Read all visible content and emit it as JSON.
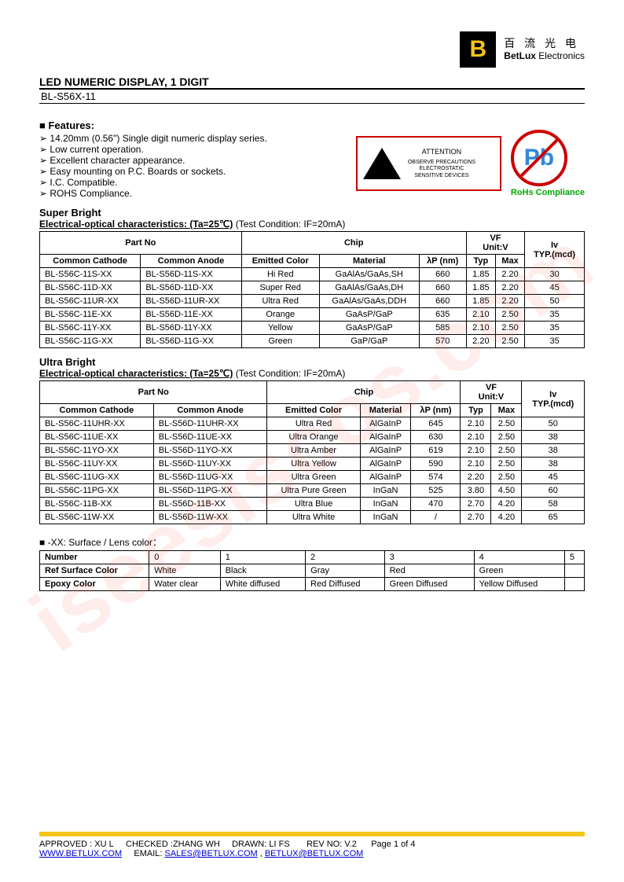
{
  "company": {
    "logo_letter": "B",
    "name_cn": "百 流 光 电",
    "name_en_bold": "BetLux",
    "name_en_rest": " Electronics"
  },
  "title": "LED NUMERIC DISPLAY, 1 DIGIT",
  "part_no": "BL-S56X-11",
  "features_heading": "Features:",
  "features": [
    "14.20mm (0.56\") Single digit numeric display series.",
    "Low current operation.",
    "Excellent character appearance.",
    "Easy mounting on P.C. Boards or sockets.",
    "I.C. Compatible.",
    "ROHS Compliance."
  ],
  "esd": {
    "attention": "ATTENTION",
    "line1": "OBSERVE PRECAUTIONS",
    "line2": "ELECTROSTATIC",
    "line3": "SENSITIVE DEVICES"
  },
  "rohs": {
    "pb": "Pb",
    "label": "RoHs Compliance"
  },
  "super": {
    "title": "Super Bright",
    "sub_u": "Electrical-optical characteristics: (Ta=25℃)",
    "sub_rest": "   (Test Condition: IF=20mA)",
    "headers": {
      "partno": "Part No",
      "chip": "Chip",
      "vf": "VF",
      "vf_unit": "Unit:V",
      "iv": "Iv",
      "iv_unit": "TYP.(mcd)",
      "cc": "Common Cathode",
      "ca": "Common Anode",
      "ec": "Emitted Color",
      "mat": "Material",
      "lp": "λP (nm)",
      "typ": "Typ",
      "max": "Max"
    },
    "rows": [
      {
        "cc": "BL-S56C-11S-XX",
        "ca": "BL-S56D-11S-XX",
        "ec": "Hi Red",
        "mat": "GaAlAs/GaAs,SH",
        "lp": "660",
        "typ": "1.85",
        "max": "2.20",
        "iv": "30"
      },
      {
        "cc": "BL-S56C-11D-XX",
        "ca": "BL-S56D-11D-XX",
        "ec": "Super Red",
        "mat": "GaAlAs/GaAs,DH",
        "lp": "660",
        "typ": "1.85",
        "max": "2.20",
        "iv": "45"
      },
      {
        "cc": "BL-S56C-11UR-XX",
        "ca": "BL-S56D-11UR-XX",
        "ec": "Ultra Red",
        "mat": "GaAlAs/GaAs,DDH",
        "lp": "660",
        "typ": "1.85",
        "max": "2.20",
        "iv": "50"
      },
      {
        "cc": "BL-S56C-11E-XX",
        "ca": "BL-S56D-11E-XX",
        "ec": "Orange",
        "mat": "GaAsP/GaP",
        "lp": "635",
        "typ": "2.10",
        "max": "2.50",
        "iv": "35"
      },
      {
        "cc": "BL-S56C-11Y-XX",
        "ca": "BL-S56D-11Y-XX",
        "ec": "Yellow",
        "mat": "GaAsP/GaP",
        "lp": "585",
        "typ": "2.10",
        "max": "2.50",
        "iv": "35"
      },
      {
        "cc": "BL-S56C-11G-XX",
        "ca": "BL-S56D-11G-XX",
        "ec": "Green",
        "mat": "GaP/GaP",
        "lp": "570",
        "typ": "2.20",
        "max": "2.50",
        "iv": "35"
      }
    ]
  },
  "ultra": {
    "title": "Ultra Bright",
    "sub_u": "Electrical-optical characteristics: (Ta=25℃)",
    "sub_rest": "   (Test Condition: IF=20mA)",
    "headers": {
      "partno": "Part No",
      "chip": "Chip",
      "vf": "VF",
      "vf_unit": "Unit:V",
      "iv": "Iv",
      "iv_unit": "TYP.(mcd)",
      "cc": "Common Cathode",
      "ca": "Common Anode",
      "ec": "Emitted Color",
      "mat": "Material",
      "lp": "λP (nm)",
      "typ": "Typ",
      "max": "Max"
    },
    "rows": [
      {
        "cc": "BL-S56C-11UHR-XX",
        "ca": "BL-S56D-11UHR-XX",
        "ec": "Ultra Red",
        "mat": "AlGaInP",
        "lp": "645",
        "typ": "2.10",
        "max": "2.50",
        "iv": "50"
      },
      {
        "cc": "BL-S56C-11UE-XX",
        "ca": "BL-S56D-11UE-XX",
        "ec": "Ultra Orange",
        "mat": "AlGaInP",
        "lp": "630",
        "typ": "2.10",
        "max": "2.50",
        "iv": "38"
      },
      {
        "cc": "BL-S56C-11YO-XX",
        "ca": "BL-S56D-11YO-XX",
        "ec": "Ultra Amber",
        "mat": "AlGaInP",
        "lp": "619",
        "typ": "2.10",
        "max": "2.50",
        "iv": "38"
      },
      {
        "cc": "BL-S56C-11UY-XX",
        "ca": "BL-S56D-11UY-XX",
        "ec": "Ultra Yellow",
        "mat": "AlGaInP",
        "lp": "590",
        "typ": "2.10",
        "max": "2.50",
        "iv": "38"
      },
      {
        "cc": "BL-S56C-11UG-XX",
        "ca": "BL-S56D-11UG-XX",
        "ec": "Ultra Green",
        "mat": "AlGaInP",
        "lp": "574",
        "typ": "2.20",
        "max": "2.50",
        "iv": "45"
      },
      {
        "cc": "BL-S56C-11PG-XX",
        "ca": "BL-S56D-11PG-XX",
        "ec": "Ultra Pure Green",
        "mat": "InGaN",
        "lp": "525",
        "typ": "3.80",
        "max": "4.50",
        "iv": "60"
      },
      {
        "cc": "BL-S56C-11B-XX",
        "ca": "BL-S56D-11B-XX",
        "ec": "Ultra Blue",
        "mat": "InGaN",
        "lp": "470",
        "typ": "2.70",
        "max": "4.20",
        "iv": "58"
      },
      {
        "cc": "BL-S56C-11W-XX",
        "ca": "BL-S56D-11W-XX",
        "ec": "Ultra White",
        "mat": "InGaN",
        "lp": "/",
        "typ": "2.70",
        "max": "4.20",
        "iv": "65"
      }
    ]
  },
  "lens": {
    "title": "-XX: Surface / Lens color：",
    "headers": {
      "num": "Number",
      "rsc": "Ref Surface Color",
      "ec": "Epoxy Color"
    },
    "cols": [
      "0",
      "1",
      "2",
      "3",
      "4",
      "5"
    ],
    "rsc": [
      "White",
      "Black",
      "Gray",
      "Red",
      "Green",
      ""
    ],
    "ec": [
      "Water clear",
      "White diffused",
      "Red Diffused",
      "Green Diffused",
      "Yellow Diffused",
      ""
    ]
  },
  "footer": {
    "line1_a": "APPROVED : XU L",
    "line1_b": "CHECKED  :ZHANG WH",
    "line1_c": "DRAWN:  LI  FS",
    "line1_d": "REV  NO:  V.2",
    "line1_e": "Page 1 of 4",
    "url": "WWW.BETLUX.COM",
    "email_lbl": "EMAIL: ",
    "email1": "SALES@BETLUX.COM",
    "sep": " , ",
    "email2": "BETLUX@BETLUX.COM"
  },
  "watermark": "iseesiscos.com"
}
